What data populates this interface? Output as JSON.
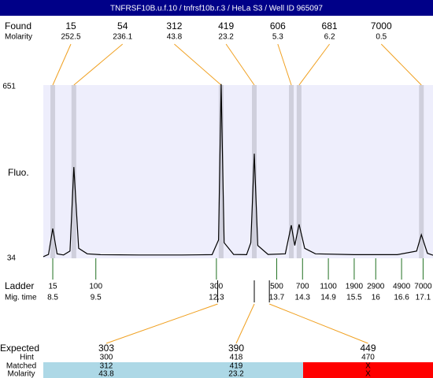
{
  "chart_data": {
    "type": "line",
    "title": "TNFRSF10B.u.f.10 / tnfrsf10b.r.3 / HeLa S3 / Well ID 965097",
    "ylabel": "Fluo.",
    "color": "#000000",
    "background": "#eeeefc",
    "band_color": "#cfcfdc",
    "xlim": [
      8.28,
      17.33
    ],
    "ylim": [
      34,
      651
    ],
    "yticks": [
      651,
      34
    ],
    "x": [
      8.28,
      8.4,
      8.5,
      8.6,
      8.75,
      8.9,
      8.99,
      9.1,
      9.3,
      9.6,
      10.5,
      11.5,
      12.2,
      12.35,
      12.41,
      12.48,
      12.7,
      13.0,
      13.1,
      13.18,
      13.26,
      13.5,
      13.9,
      14.04,
      14.12,
      14.22,
      14.35,
      14.6,
      15.5,
      16.5,
      16.95,
      17.06,
      17.2,
      17.33
    ],
    "values": [
      40,
      48,
      141,
      50,
      46,
      60,
      362,
      70,
      50,
      47,
      46,
      46,
      47,
      100,
      660,
      90,
      48,
      47,
      90,
      410,
      80,
      48,
      50,
      153,
      80,
      156,
      70,
      50,
      47,
      47,
      60,
      119,
      52,
      45
    ],
    "found": {
      "label": "Found",
      "molarity_label": "Molarity",
      "color": "#f0a020",
      "sizes": [
        15,
        54,
        312,
        419,
        606,
        681,
        7000
      ],
      "molarity": [
        252.5,
        236.1,
        43.8,
        23.2,
        5.3,
        6.2,
        0.5
      ],
      "times": [
        8.5,
        8.99,
        12.41,
        13.18,
        14.04,
        14.22,
        17.06
      ]
    },
    "ladder": {
      "label": "Ladder",
      "time_label": "Mig. time",
      "color": "#207020",
      "sizes": [
        15,
        100,
        300,
        500,
        700,
        1100,
        1900,
        2900,
        4900,
        7000
      ],
      "times": [
        8.5,
        9.5,
        12.3,
        13.7,
        14.3,
        14.9,
        15.5,
        16,
        16.6,
        17.1
      ]
    },
    "expected": {
      "label": "Expected",
      "hint_label": "Hint",
      "matched_label": "Matched",
      "molarity_label": "Molarity",
      "sizes": [
        303,
        390,
        449
      ],
      "times": [
        12.33,
        13.18,
        13.53
      ],
      "hint": [
        300,
        418,
        470
      ],
      "matched": [
        312,
        419,
        "X"
      ],
      "molarity": [
        43.8,
        23.2,
        "X"
      ],
      "status_colors": [
        "#add8e6",
        "#add8e6",
        "#ff0000"
      ]
    }
  }
}
